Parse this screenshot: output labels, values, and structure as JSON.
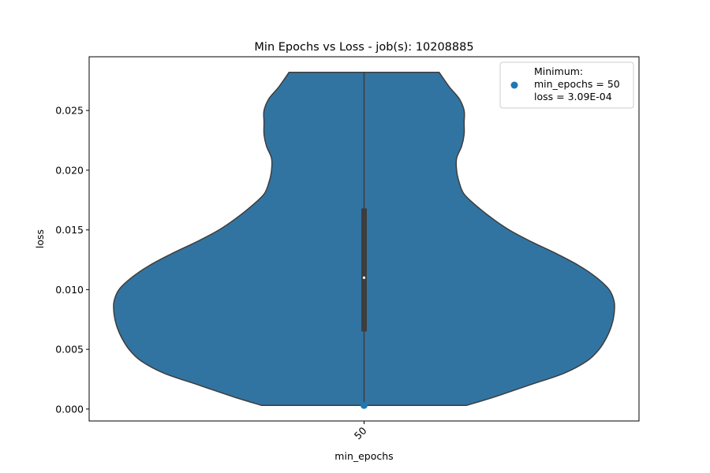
{
  "chart_data": {
    "type": "violin",
    "title": "Min Epochs vs Loss - job(s): 10208885",
    "xlabel": "min_epochs",
    "ylabel": "loss",
    "categories": [
      "50"
    ],
    "ylim": [
      -0.001,
      0.0295
    ],
    "yticks": [
      0.0,
      0.005,
      0.01,
      0.015,
      0.02,
      0.025
    ],
    "ytick_labels": [
      "0.000",
      "0.005",
      "0.010",
      "0.015",
      "0.020",
      "0.025"
    ],
    "grid": false,
    "legend_position": "upper-right",
    "legend_lines": [
      "Minimum:",
      "min_epochs = 50",
      "loss = 3.09E-04"
    ],
    "violin": {
      "min": 0.000309,
      "max": 0.0282,
      "q1": 0.0065,
      "median": 0.011,
      "q3": 0.0168,
      "density_profile": [
        [
          0.000309,
          0.41
        ],
        [
          0.001,
          0.52
        ],
        [
          0.002,
          0.66
        ],
        [
          0.003,
          0.8
        ],
        [
          0.004,
          0.89
        ],
        [
          0.005,
          0.94
        ],
        [
          0.006,
          0.97
        ],
        [
          0.007,
          0.99
        ],
        [
          0.008,
          1.0
        ],
        [
          0.009,
          1.0
        ],
        [
          0.01,
          0.98
        ],
        [
          0.011,
          0.93
        ],
        [
          0.012,
          0.86
        ],
        [
          0.013,
          0.77
        ],
        [
          0.014,
          0.67
        ],
        [
          0.015,
          0.58
        ],
        [
          0.016,
          0.51
        ],
        [
          0.017,
          0.45
        ],
        [
          0.018,
          0.4
        ],
        [
          0.019,
          0.38
        ],
        [
          0.02,
          0.37
        ],
        [
          0.021,
          0.37
        ],
        [
          0.022,
          0.39
        ],
        [
          0.023,
          0.4
        ],
        [
          0.024,
          0.4
        ],
        [
          0.025,
          0.4
        ],
        [
          0.026,
          0.38
        ],
        [
          0.027,
          0.34
        ],
        [
          0.0282,
          0.3
        ]
      ]
    },
    "minimum_point": {
      "x": "50",
      "y": 0.000309
    },
    "colors": {
      "violin_fill": "#3274a1",
      "violin_edge": "#3d3d3d",
      "box": "#3d3d3d",
      "median": "#ffffff",
      "minimum_marker": "#1f77b4"
    }
  }
}
